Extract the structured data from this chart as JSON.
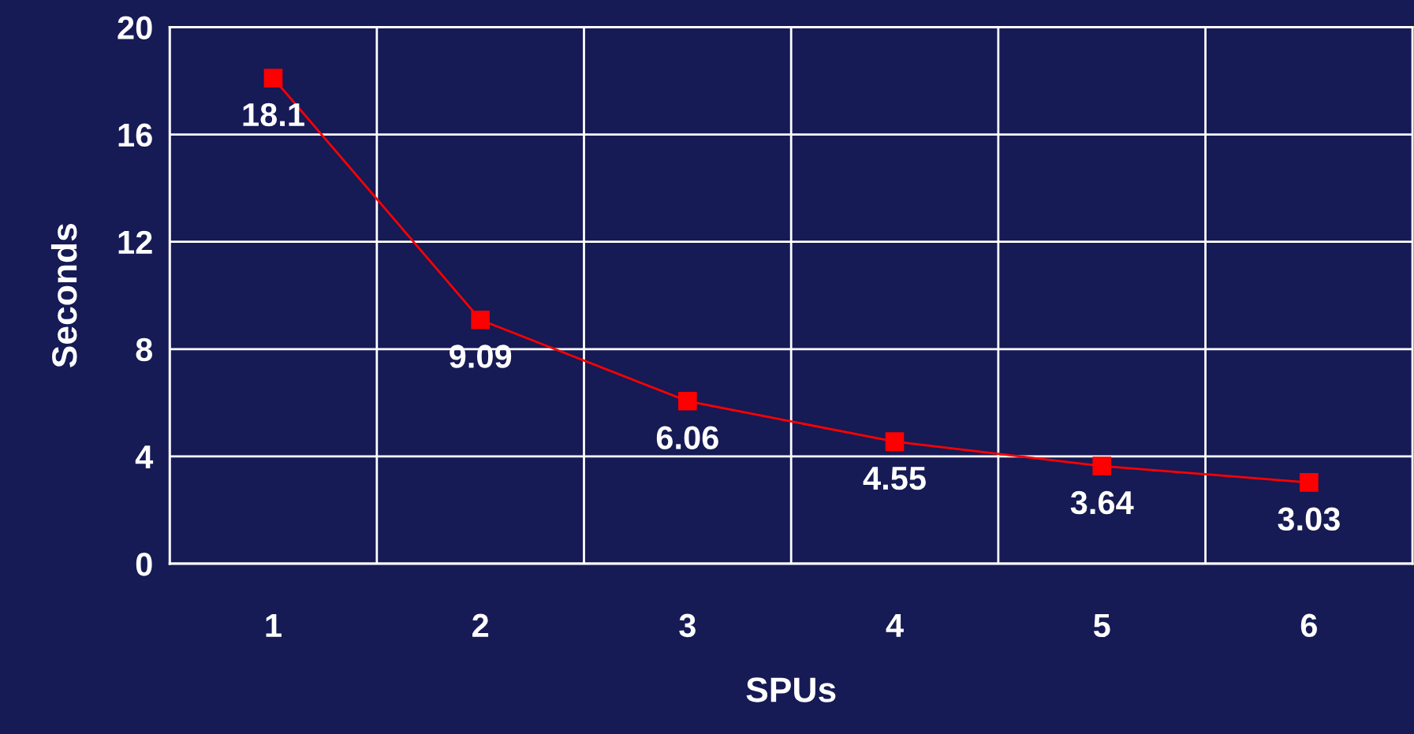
{
  "chart_data": {
    "type": "line",
    "xlabel": "SPUs",
    "ylabel": "Seconds",
    "categories": [
      "1",
      "2",
      "3",
      "4",
      "5",
      "6"
    ],
    "series": [
      {
        "color": "#ff0000",
        "values": [
          18.1,
          9.09,
          6.06,
          4.55,
          3.64,
          3.03
        ]
      }
    ],
    "ylim": [
      0,
      20
    ],
    "yticks": [
      0,
      4,
      8,
      12,
      16,
      20
    ],
    "grid": true,
    "marker": "square",
    "line_style": "solid",
    "data_labels": true
  }
}
